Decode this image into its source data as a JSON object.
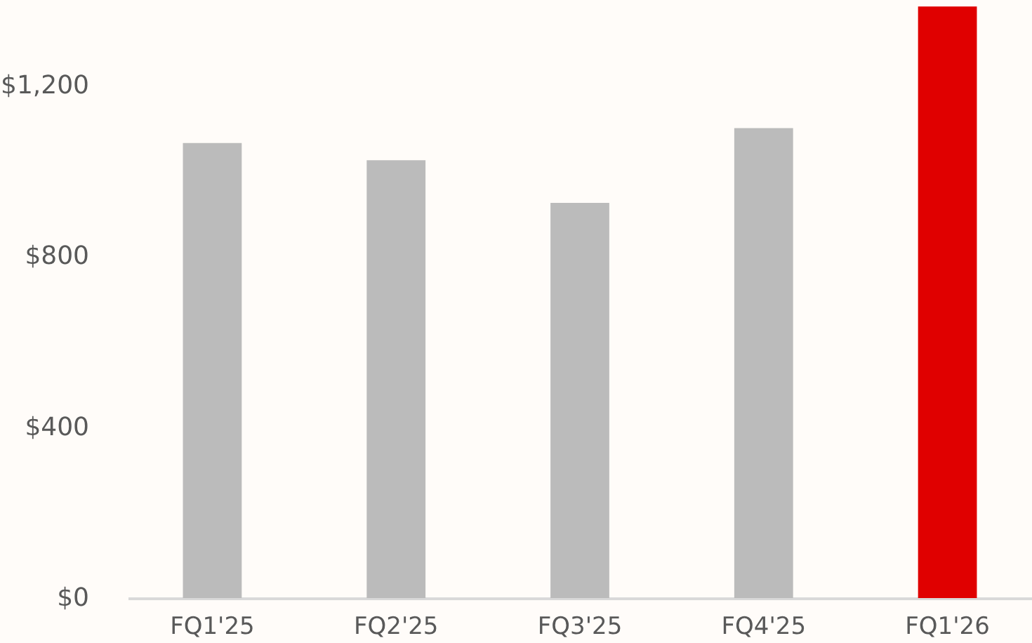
{
  "chart_data": {
    "type": "bar",
    "categories": [
      "FQ1'25",
      "FQ2'25",
      "FQ3'25",
      "FQ4'25",
      "FQ1'26"
    ],
    "values": [
      1065,
      1025,
      925,
      1100,
      1385
    ],
    "colors": [
      "#bbbbbb",
      "#bbbbbb",
      "#bbbbbb",
      "#bbbbbb",
      "#e00000"
    ],
    "ylim": [
      0,
      1400
    ],
    "yticks": [
      {
        "value": 0,
        "label": "$0"
      },
      {
        "value": 400,
        "label": "$400"
      },
      {
        "value": 800,
        "label": "$800"
      },
      {
        "value": 1200,
        "label": "$1,200"
      }
    ],
    "grid": false
  }
}
